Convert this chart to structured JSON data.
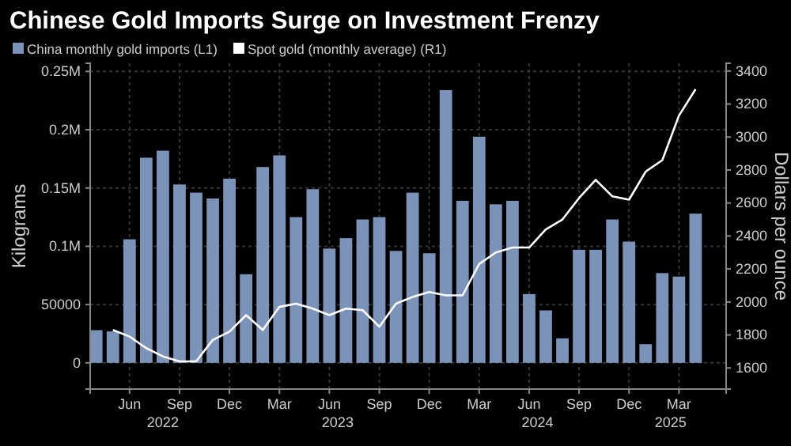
{
  "chart_data": {
    "type": "bar",
    "title": "Chinese Gold Imports Surge on Investment Frenzy",
    "ylabel": "Kilograms",
    "y2label": "Dollars per ounce",
    "x": [
      "2022-04",
      "2022-05",
      "2022-06",
      "2022-07",
      "2022-08",
      "2022-09",
      "2022-10",
      "2022-11",
      "2022-12",
      "2023-01",
      "2023-02",
      "2023-03",
      "2023-04",
      "2023-05",
      "2023-06",
      "2023-07",
      "2023-08",
      "2023-09",
      "2023-10",
      "2023-11",
      "2023-12",
      "2024-01",
      "2024-02",
      "2024-03",
      "2024-04",
      "2024-05",
      "2024-06",
      "2024-07",
      "2024-08",
      "2024-09",
      "2024-10",
      "2024-11",
      "2024-12",
      "2025-01",
      "2025-02",
      "2025-03",
      "2025-04"
    ],
    "series": [
      {
        "name": "China monthly gold imports (L1)",
        "color": "#7b93b8",
        "values": [
          28000,
          27000,
          106000,
          176000,
          182000,
          153000,
          146000,
          141000,
          158000,
          76000,
          168000,
          178000,
          125000,
          149000,
          98000,
          107000,
          123000,
          125000,
          96000,
          146000,
          94000,
          234000,
          139000,
          194000,
          136000,
          139000,
          59000,
          45000,
          21000,
          97000,
          97000,
          123000,
          104000,
          16000,
          77000,
          74000,
          128000
        ]
      },
      {
        "name": "Spot gold (monthly average) (R1)",
        "type": "line",
        "axis": "y2",
        "color": "#ffffff",
        "x": [
          "2022-05",
          "2022-06",
          "2022-07",
          "2022-08",
          "2022-09",
          "2022-10",
          "2022-11",
          "2022-12",
          "2023-01",
          "2023-02",
          "2023-03",
          "2023-04",
          "2023-05",
          "2023-06",
          "2023-07",
          "2023-08",
          "2023-09",
          "2023-10",
          "2023-11",
          "2023-12",
          "2024-01",
          "2024-02",
          "2024-03",
          "2024-04",
          "2024-05",
          "2024-06",
          "2024-07",
          "2024-08",
          "2024-09",
          "2024-10",
          "2024-11",
          "2024-12",
          "2025-01",
          "2025-02",
          "2025-03",
          "2025-04"
        ],
        "values": [
          1830,
          1790,
          1720,
          1670,
          1640,
          1640,
          1770,
          1820,
          1920,
          1830,
          1970,
          1990,
          1960,
          1920,
          1960,
          1950,
          1850,
          1990,
          2030,
          2060,
          2040,
          2040,
          2230,
          2300,
          2330,
          2330,
          2440,
          2500,
          2630,
          2740,
          2640,
          2620,
          2790,
          2860,
          3130,
          3290
        ]
      }
    ],
    "xlim": [
      "2022-03-20",
      "2025-05-26"
    ],
    "xticks": [
      {
        "value": "2022-06",
        "label": "Jun"
      },
      {
        "value": "2022-09",
        "label": "Sep"
      },
      {
        "value": "2022-12",
        "label": "Dec"
      },
      {
        "value": "2023-03",
        "label": "Mar"
      },
      {
        "value": "2023-06",
        "label": "Jun"
      },
      {
        "value": "2023-09",
        "label": "Sep"
      },
      {
        "value": "2023-12",
        "label": "Dec"
      },
      {
        "value": "2024-03",
        "label": "Mar"
      },
      {
        "value": "2024-06",
        "label": "Jun"
      },
      {
        "value": "2024-09",
        "label": "Sep"
      },
      {
        "value": "2024-12",
        "label": "Dec"
      },
      {
        "value": "2025-03",
        "label": "Mar"
      }
    ],
    "annotations": [
      "2022",
      "2023",
      "2024",
      "2025"
    ],
    "ylim": [
      -22500,
      257000
    ],
    "yticks": [
      0,
      50000,
      {
        "value": 100000,
        "label": "0.1M"
      },
      {
        "value": 150000,
        "label": "0.15M"
      },
      {
        "value": 200000,
        "label": "0.2M"
      },
      {
        "value": 250000,
        "label": "0.25M"
      }
    ],
    "y2lim": [
      1472,
      3447
    ],
    "y2ticks": [
      1600,
      1800,
      2000,
      2200,
      2400,
      2600,
      2800,
      3000,
      3200,
      3400
    ],
    "grid": true,
    "legend": "top left",
    "marker": "none",
    "line_style": "solid"
  }
}
